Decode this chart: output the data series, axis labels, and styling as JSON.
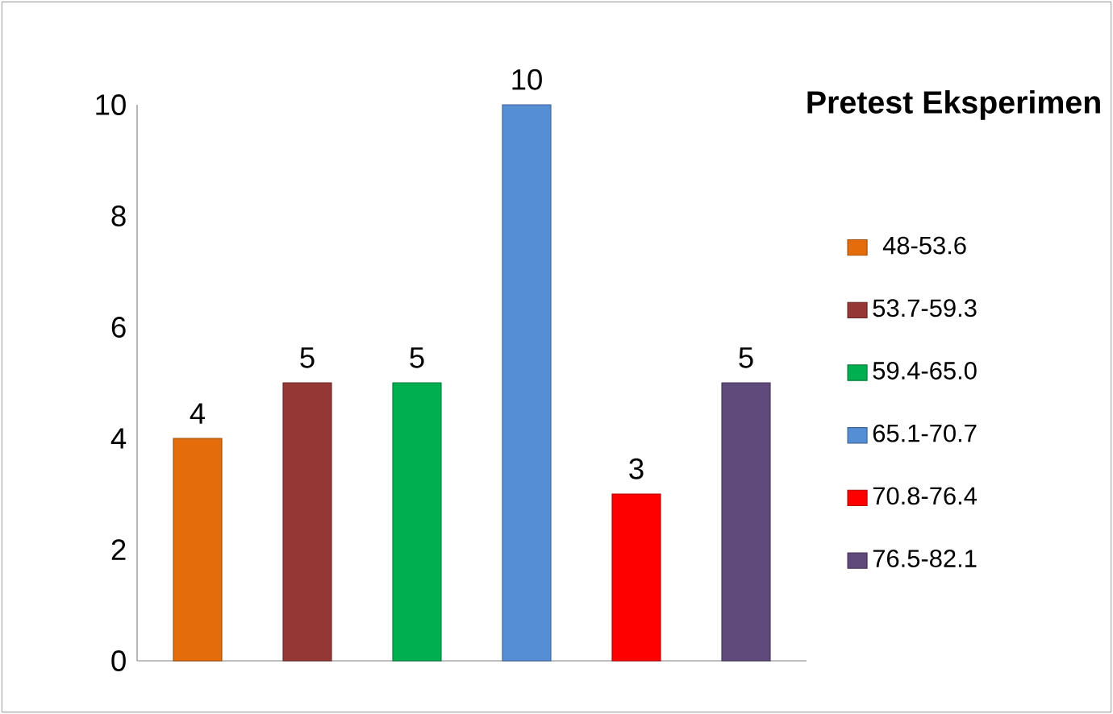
{
  "chart_data": {
    "type": "bar",
    "title": "Pretest Eksperimen",
    "categories": [
      null
    ],
    "series": [
      {
        "name": "48-53.6",
        "color": "#e46c0a",
        "values": [
          4
        ]
      },
      {
        "name": "53.7-59.3",
        "color": "#953735",
        "values": [
          5
        ]
      },
      {
        "name": "59.4-65.0",
        "color": "#00b050",
        "values": [
          5
        ]
      },
      {
        "name": "65.1-70.7",
        "color": "#558ed5",
        "values": [
          10
        ]
      },
      {
        "name": "70.8-76.4",
        "color": "#ff0000",
        "values": [
          3
        ]
      },
      {
        "name": "76.5-82.1",
        "color": "#604a7b",
        "values": [
          5
        ]
      }
    ],
    "ylim": [
      0,
      10
    ],
    "yticks": [
      0,
      2,
      4,
      6,
      8,
      10
    ],
    "data_labels": true,
    "legend": "right",
    "tick_labels": "y",
    "grid": false
  }
}
